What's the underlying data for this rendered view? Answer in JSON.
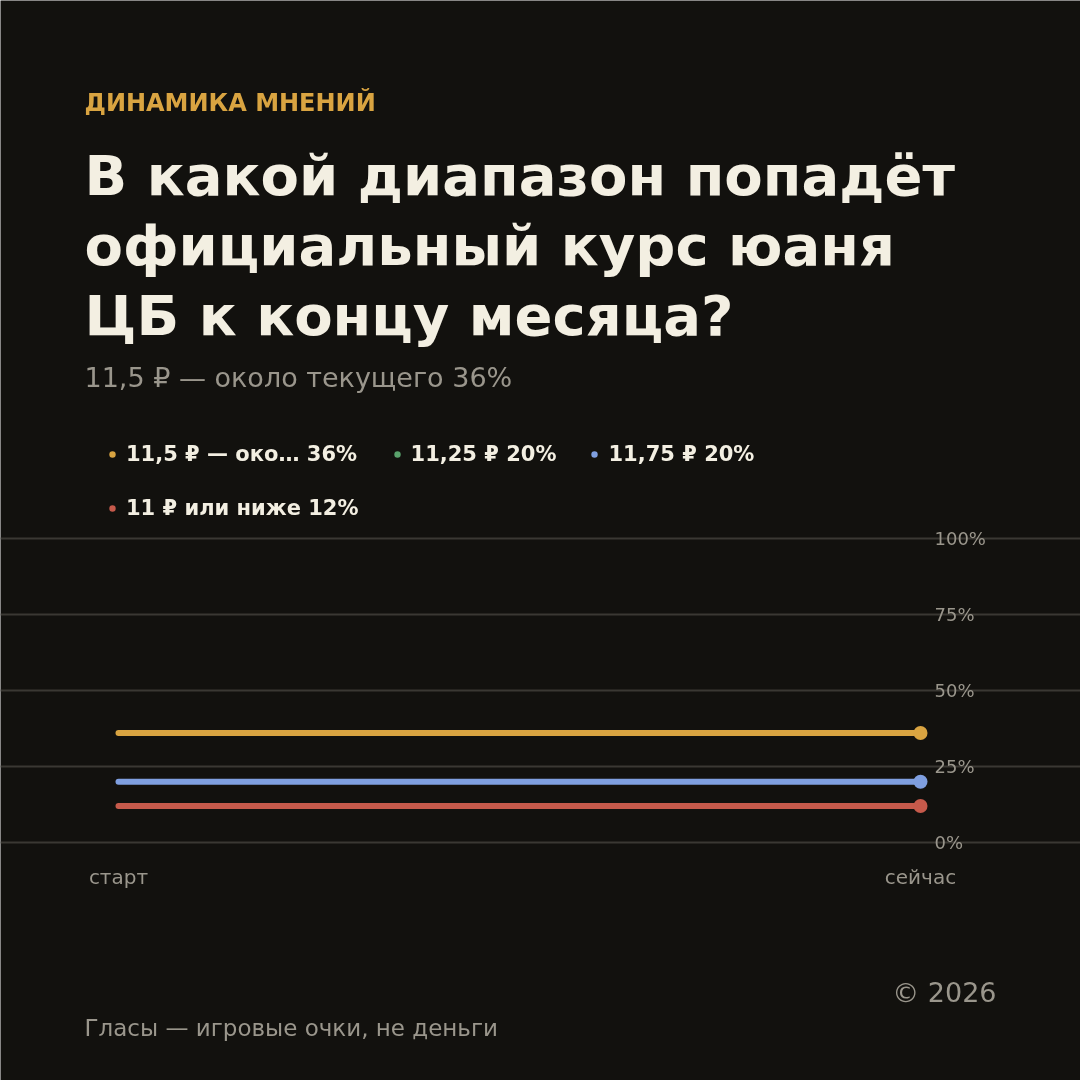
{
  "chart_data": {
    "type": "line",
    "title": "В какой диапазон попадёт\nофициальный курс юаня\nЦБ к концу месяца?",
    "subtitle": "11,5 ₽ — около текущего 36%",
    "annotations": [
      "ДИНАМИКА МНЕНИЙ",
      "Гласы — игровые очки, не деньги",
      "© 2026"
    ],
    "categories": [
      "старт",
      "сейчас"
    ],
    "series": [
      {
        "name": "11,5 ₽ — око… 36%",
        "color": "#d9a441",
        "values": [
          36,
          36
        ]
      },
      {
        "name": "11,25 ₽ 20%",
        "color": "#5aa36c",
        "values": [
          null,
          null
        ]
      },
      {
        "name": "11,75 ₽ 20%",
        "color": "#7f9fe0",
        "values": [
          20,
          20
        ]
      },
      {
        "name": "11 ₽ или ниже 12%",
        "color": "#c65a4b",
        "values": [
          12,
          12
        ]
      }
    ],
    "ylim": [
      0,
      100
    ],
    "yticks": [
      {
        "value": 0,
        "label": "0%"
      },
      {
        "value": 25,
        "label": "25%"
      },
      {
        "value": 50,
        "label": "50%"
      },
      {
        "value": 75,
        "label": "75%"
      },
      {
        "value": 100,
        "label": "100%"
      }
    ],
    "grid": "y",
    "legend": "top left",
    "marker": "circle",
    "line_style": "solid"
  }
}
